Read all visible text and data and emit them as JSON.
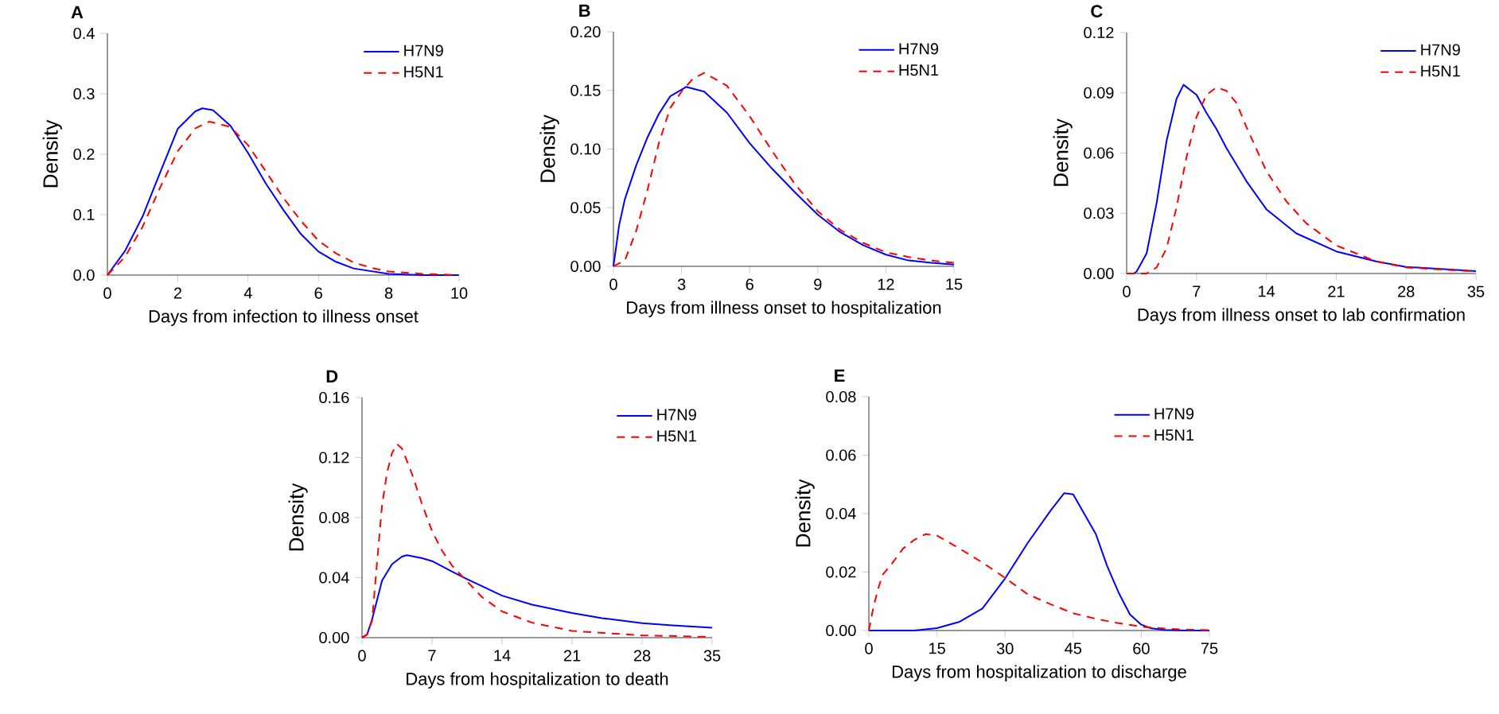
{
  "chart_data": [
    {
      "type": "line",
      "title": "A",
      "xlabel": "Days from infection to illness onset",
      "ylabel": "Density",
      "xlim": [
        0,
        10
      ],
      "ylim": [
        0,
        0.4
      ],
      "xticks": [
        0,
        2,
        4,
        6,
        8,
        10
      ],
      "yticks": [
        {
          "value": 0,
          "label": "0.0"
        },
        0.1,
        0.2,
        0.3,
        0.4
      ],
      "legend": "top right",
      "grid": false,
      "marker": "none",
      "series": [
        {
          "name": "H7N9",
          "color": "#0000ff",
          "line_style": "solid",
          "x": [
            0,
            0.5,
            1,
            1.5,
            2,
            2.5,
            2.7,
            3,
            3.5,
            4,
            4.5,
            5,
            5.5,
            6,
            6.5,
            7,
            8,
            9,
            10
          ],
          "values": [
            0,
            0.04,
            0.097,
            0.17,
            0.242,
            0.271,
            0.276,
            0.273,
            0.247,
            0.202,
            0.152,
            0.108,
            0.068,
            0.039,
            0.022,
            0.011,
            0.002,
            0,
            0
          ]
        },
        {
          "name": "H5N1",
          "color": "#ff0000",
          "line_style": "dashed",
          "x": [
            0,
            0.5,
            1,
            1.5,
            2,
            2.5,
            2.9,
            3.5,
            4,
            4.5,
            5,
            5.5,
            6,
            6.5,
            7,
            7.5,
            8,
            9,
            10
          ],
          "values": [
            0,
            0.03,
            0.08,
            0.145,
            0.205,
            0.243,
            0.254,
            0.245,
            0.215,
            0.172,
            0.128,
            0.09,
            0.057,
            0.036,
            0.021,
            0.012,
            0.006,
            0.002,
            0
          ]
        }
      ]
    },
    {
      "type": "line",
      "title": "B",
      "xlabel": "Days from illness onset to hospitalization",
      "ylabel": "Density",
      "xlim": [
        0,
        15
      ],
      "ylim": [
        0,
        0.2
      ],
      "xticks": [
        0,
        3,
        6,
        9,
        12,
        15
      ],
      "yticks": [
        {
          "value": 0,
          "label": "0.00"
        },
        0.05,
        {
          "value": 0.1,
          "label": "0.10"
        },
        0.15,
        {
          "value": 0.2,
          "label": "0.20"
        }
      ],
      "legend": "top right",
      "grid": false,
      "marker": "none",
      "series": [
        {
          "name": "H7N9",
          "color": "#0000ff",
          "line_style": "solid",
          "x": [
            0,
            0.25,
            0.5,
            1,
            1.5,
            2,
            2.5,
            3.2,
            4,
            5,
            6,
            7,
            8,
            9,
            10,
            11,
            12,
            13,
            14,
            15
          ],
          "values": [
            0,
            0.035,
            0.057,
            0.086,
            0.11,
            0.13,
            0.145,
            0.153,
            0.149,
            0.131,
            0.105,
            0.083,
            0.063,
            0.044,
            0.029,
            0.018,
            0.01,
            0.005,
            0.003,
            0.0015
          ]
        },
        {
          "name": "H5N1",
          "color": "#ff0000",
          "line_style": "dashed",
          "x": [
            0,
            0.5,
            1,
            1.5,
            2,
            2.5,
            3,
            3.5,
            4,
            5,
            6,
            7,
            8,
            9,
            10,
            11,
            12,
            13,
            14,
            15
          ],
          "values": [
            0,
            0.005,
            0.03,
            0.065,
            0.105,
            0.135,
            0.149,
            0.16,
            0.165,
            0.154,
            0.128,
            0.098,
            0.07,
            0.047,
            0.031,
            0.02,
            0.012,
            0.008,
            0.005,
            0.003
          ]
        }
      ]
    },
    {
      "type": "line",
      "title": "C",
      "xlabel": "Days from illness onset to lab confirmation",
      "ylabel": "Density",
      "xlim": [
        0,
        35
      ],
      "ylim": [
        0,
        0.12
      ],
      "xticks": [
        0,
        7,
        14,
        21,
        28,
        35
      ],
      "yticks": [
        {
          "value": 0,
          "label": "0.00"
        },
        0.03,
        0.06,
        0.09,
        0.12
      ],
      "legend": "top right",
      "grid": false,
      "marker": "none",
      "series": [
        {
          "name": "H7N9",
          "color": "#0000ff",
          "line_style": "solid",
          "x": [
            0,
            0.7,
            1,
            2,
            3,
            4,
            5,
            5.7,
            7,
            8,
            9,
            10,
            12,
            14,
            17,
            21,
            25,
            28,
            35
          ],
          "values": [
            0,
            0,
            0.001,
            0.01,
            0.035,
            0.066,
            0.087,
            0.094,
            0.089,
            0.08,
            0.072,
            0.0625,
            0.046,
            0.032,
            0.02,
            0.011,
            0.006,
            0.0033,
            0.0012
          ]
        },
        {
          "name": "H5N1",
          "color": "#ff0000",
          "line_style": "dashed",
          "x": [
            0,
            2,
            3,
            4,
            5,
            6,
            7,
            8,
            9,
            10,
            11,
            12,
            14,
            16,
            18,
            21,
            25,
            28,
            35
          ],
          "values": [
            0,
            0,
            0.003,
            0.0125,
            0.033,
            0.058,
            0.078,
            0.089,
            0.0927,
            0.091,
            0.085,
            0.073,
            0.051,
            0.036,
            0.025,
            0.014,
            0.006,
            0.003,
            0.001
          ]
        }
      ]
    },
    {
      "type": "line",
      "title": "D",
      "xlabel": "Days from hospitalization to death",
      "ylabel": "Density",
      "xlim": [
        0,
        35
      ],
      "ylim": [
        0,
        0.16
      ],
      "xticks": [
        0,
        7,
        14,
        21,
        28,
        35
      ],
      "yticks": [
        {
          "value": 0,
          "label": "0.00"
        },
        0.04,
        0.08,
        0.12,
        0.16
      ],
      "legend": "top right",
      "grid": false,
      "marker": "none",
      "series": [
        {
          "name": "H7N9",
          "color": "#0000ff",
          "line_style": "solid",
          "x": [
            0,
            0.5,
            1,
            1.5,
            2,
            3,
            4,
            4.5,
            6,
            7,
            9,
            10.5,
            14,
            17,
            21,
            24,
            28,
            31,
            35
          ],
          "values": [
            0,
            0.002,
            0.012,
            0.025,
            0.038,
            0.049,
            0.054,
            0.055,
            0.053,
            0.051,
            0.044,
            0.039,
            0.028,
            0.022,
            0.0164,
            0.013,
            0.0096,
            0.0082,
            0.0066
          ]
        },
        {
          "name": "H5N1",
          "color": "#ff0000",
          "line_style": "dashed",
          "x": [
            0,
            0.5,
            1,
            1.5,
            2,
            2.5,
            3,
            3.5,
            4,
            5,
            6,
            7,
            8,
            9,
            10,
            11,
            12,
            14,
            17,
            21,
            28,
            35
          ],
          "values": [
            0,
            0.002,
            0.011,
            0.05,
            0.088,
            0.11,
            0.123,
            0.129,
            0.126,
            0.109,
            0.089,
            0.071,
            0.058,
            0.048,
            0.041,
            0.034,
            0.027,
            0.0175,
            0.01,
            0.0045,
            0.0015,
            0.0005
          ]
        }
      ]
    },
    {
      "type": "line",
      "title": "E",
      "xlabel": "Days from hospitalization to discharge",
      "ylabel": "Density",
      "xlim": [
        0,
        75
      ],
      "ylim": [
        0,
        0.08
      ],
      "xticks": [
        0,
        15,
        30,
        45,
        60,
        75
      ],
      "yticks": [
        {
          "value": 0,
          "label": "0.00"
        },
        0.02,
        0.04,
        0.06,
        0.08
      ],
      "legend": "top right",
      "grid": false,
      "marker": "none",
      "series": [
        {
          "name": "H7N9",
          "color": "#0000ff",
          "line_style": "solid",
          "x": [
            0,
            10,
            15,
            20,
            25,
            30,
            35,
            40,
            43,
            45,
            50,
            52.5,
            55,
            57.5,
            60,
            62,
            65,
            70,
            75
          ],
          "values": [
            0,
            0,
            0.0008,
            0.003,
            0.0075,
            0.0178,
            0.03,
            0.041,
            0.047,
            0.0466,
            0.033,
            0.022,
            0.013,
            0.0055,
            0.002,
            0.0008,
            0.0002,
            0,
            0
          ]
        },
        {
          "name": "H5N1",
          "color": "#ff0000",
          "line_style": "dashed",
          "x": [
            0,
            1,
            2,
            3,
            5,
            7.5,
            10,
            12.5,
            15,
            20,
            25,
            30,
            35,
            40,
            45,
            50,
            55,
            60,
            65,
            70,
            75
          ],
          "values": [
            0,
            0.008,
            0.014,
            0.019,
            0.0227,
            0.028,
            0.031,
            0.033,
            0.0325,
            0.028,
            0.0233,
            0.018,
            0.0124,
            0.009,
            0.0059,
            0.004,
            0.0025,
            0.0013,
            0.0007,
            0.0003,
            0.0001
          ]
        }
      ]
    }
  ]
}
